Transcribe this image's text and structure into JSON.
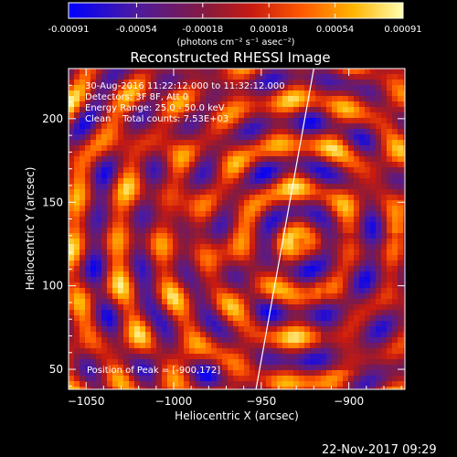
{
  "chart_data": {
    "type": "heatmap",
    "title": "Reconstructed RHESSI Image",
    "xlabel": "Heliocentric X (arcsec)",
    "ylabel": "Heliocentric Y (arcsec)",
    "xlim": [
      -1060,
      -868
    ],
    "ylim": [
      38,
      230
    ],
    "x_ticks": [
      -1050,
      -1000,
      -950,
      -900
    ],
    "x_tick_labels": [
      "−1050",
      "−1000",
      "−950",
      "−900"
    ],
    "y_ticks": [
      50,
      100,
      150,
      200
    ],
    "y_tick_labels": [
      "50",
      "100",
      "150",
      "200"
    ],
    "colorbar": {
      "min": -0.00091,
      "max": 0.00091,
      "ticks": [
        -0.00091,
        -0.00054,
        -0.00018,
        0.00018,
        0.00054,
        0.00091
      ],
      "tick_labels": [
        "-0.00091",
        "-0.00054",
        "-0.00018",
        "0.00018",
        "0.00054",
        "0.00091"
      ],
      "unit_label": "(photons cm⁻² s⁻¹ asec⁻²)",
      "colors": [
        "#0000ff",
        "#5a1aa6",
        "#b01a1a",
        "#ff4400",
        "#ffaa00",
        "#ffff99"
      ]
    },
    "annotations": [
      "30-Aug-2016 11:22:12.000 to 11:32:12.000",
      "Detectors: 3F 8F, Att 0",
      "Energy Range: 25.0 - 50.0 keV",
      "Clean    Total counts: 7.53E+03"
    ],
    "peak_label": "Position of Peak = [-900,172]",
    "limb_line": [
      [
        -953,
        38
      ],
      [
        -920,
        230
      ]
    ],
    "grid": false
  },
  "footer": {
    "timestamp": "22-Nov-2017 09:29"
  }
}
